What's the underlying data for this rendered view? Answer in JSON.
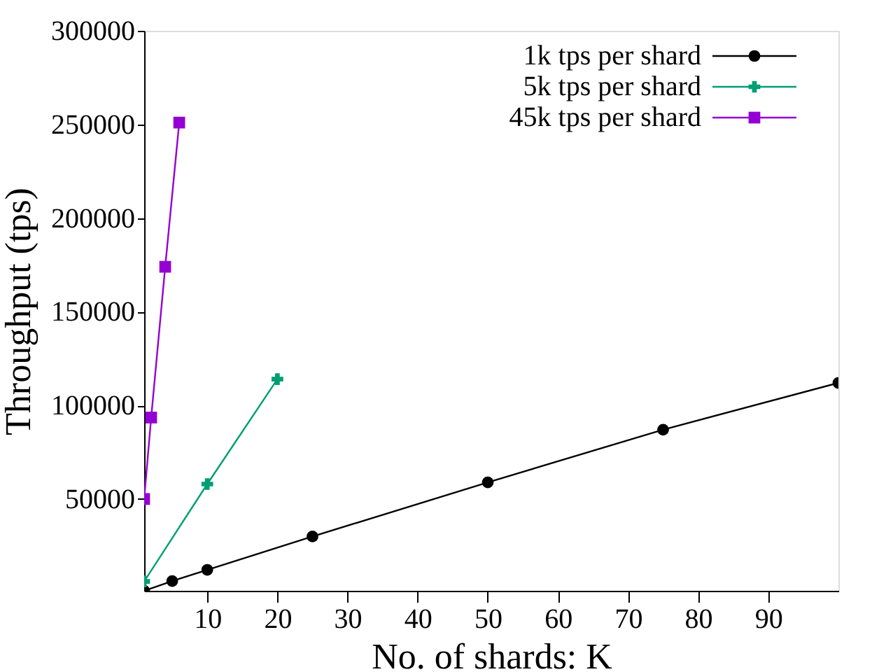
{
  "chart_data": {
    "type": "line",
    "xlabel": "No. of shards: K",
    "ylabel": "Throughput (tps)",
    "xlim": [
      1,
      100
    ],
    "xticks": [
      10,
      20,
      30,
      40,
      50,
      60,
      70,
      80,
      90
    ],
    "ylim": [
      1000,
      300000
    ],
    "yticks": [
      50000,
      100000,
      150000,
      200000,
      250000,
      300000
    ],
    "grid": false,
    "legend": "top right",
    "series": [
      {
        "name": "1k tps per shard",
        "color": "#000000",
        "marker": "circle",
        "x": [
          1,
          5,
          10,
          25,
          50,
          75,
          100
        ],
        "values": [
          1000,
          6200,
          12200,
          30000,
          58900,
          87000,
          112000
        ]
      },
      {
        "name": "5k tps per shard",
        "color": "#009e73",
        "marker": "cross",
        "x": [
          1,
          10,
          20
        ],
        "values": [
          6000,
          58000,
          114000
        ]
      },
      {
        "name": "45k tps per shard",
        "color": "#9400d3",
        "marker": "square",
        "x": [
          1,
          2,
          4,
          6
        ],
        "values": [
          50000,
          93500,
          174000,
          251000
        ]
      }
    ]
  }
}
